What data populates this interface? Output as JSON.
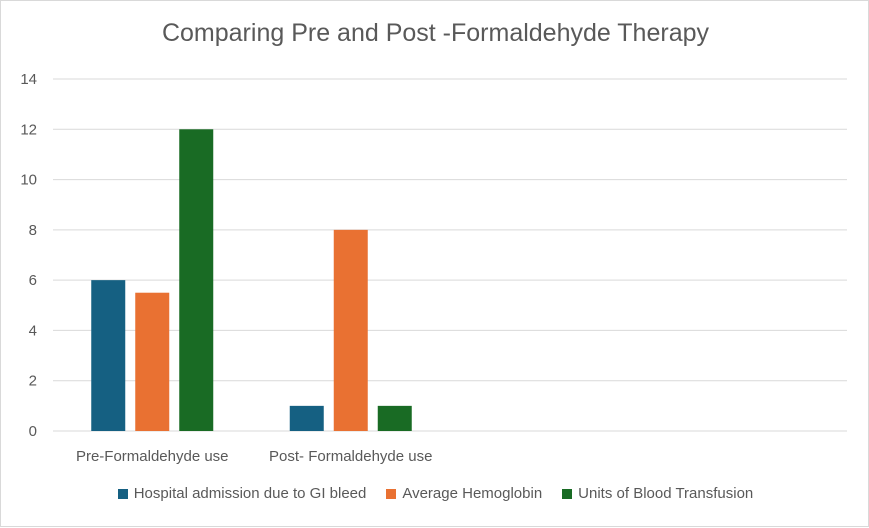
{
  "chart_data": {
    "type": "bar",
    "title": "Comparing Pre and Post -Formaldehyde Therapy",
    "categories": [
      "Pre-Formaldehyde use",
      "Post- Formaldehyde use",
      "",
      ""
    ],
    "series": [
      {
        "name": "Hospital admission due to GI bleed",
        "color": "#156082",
        "values": [
          6,
          1,
          null,
          null
        ]
      },
      {
        "name": "Average Hemoglobin",
        "color": "#e97132",
        "values": [
          5.5,
          8,
          null,
          null
        ]
      },
      {
        "name": "Units of Blood Transfusion",
        "color": "#196b24",
        "values": [
          12,
          1,
          null,
          null
        ]
      }
    ],
    "ylim": [
      0,
      14
    ],
    "yticks": [
      0,
      2,
      4,
      6,
      8,
      10,
      12,
      14
    ],
    "grid": true,
    "legend_position": "bottom",
    "xlabel": "",
    "ylabel": ""
  }
}
